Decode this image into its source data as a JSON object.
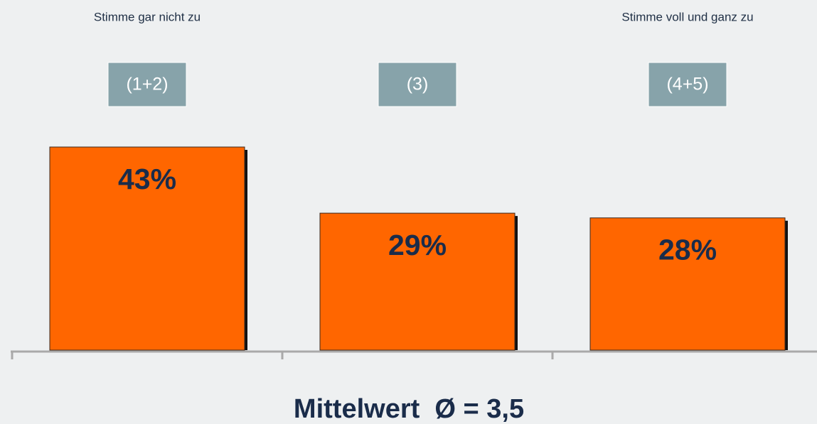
{
  "chart_data": {
    "type": "bar",
    "annotations": [
      "Stimme gar nicht zu",
      "Stimme voll und ganz zu"
    ],
    "categories": [
      "(1+2)",
      "(3)",
      "(4+5)"
    ],
    "values": [
      43,
      29,
      28
    ],
    "value_labels": [
      "43%",
      "29%",
      "28%"
    ],
    "color": "#ff6600",
    "footer": "Mittelwert  Ø = 3,5"
  }
}
